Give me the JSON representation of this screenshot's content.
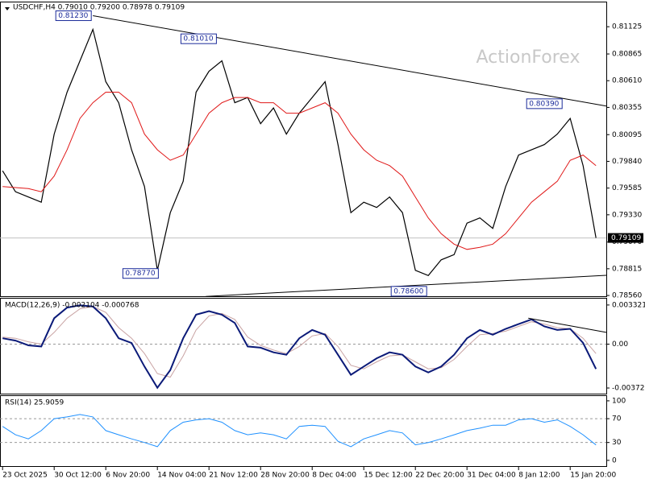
{
  "chart_data": [
    {
      "type": "line",
      "title": "USDCHF,H4  0.79010 0.79200 0.78978 0.79109",
      "watermark": "ActionForex",
      "xlim": [
        -0.2,
        46.8
      ],
      "ylim": [
        0.78545,
        0.81357
      ],
      "yticks": [
        0.81125,
        0.80865,
        {
          "value": 0.8061,
          "label": "0.80610"
        },
        0.80355,
        0.80095,
        {
          "value": 0.7984,
          "label": "0.79840"
        },
        0.79585,
        {
          "value": 0.7933,
          "label": "0.79330"
        },
        {
          "value": 0.7907,
          "label": "0.79070"
        },
        0.78815,
        {
          "value": 0.7856,
          "label": "0.78560"
        }
      ],
      "last_price": 0.79109,
      "series": [
        {
          "name": "USDCHF",
          "color": "#000000",
          "values": [
            0.7975,
            0.7955,
            0.795,
            0.7945,
            0.801,
            0.805,
            0.808,
            0.811,
            0.806,
            0.804,
            0.7995,
            0.796,
            0.788,
            0.7935,
            0.7965,
            0.805,
            0.807,
            0.808,
            0.804,
            0.8045,
            0.802,
            0.8035,
            0.801,
            0.803,
            0.8045,
            0.806,
            0.8,
            0.7935,
            0.7945,
            0.794,
            0.795,
            0.7935,
            0.788,
            0.7875,
            0.789,
            0.7895,
            0.7925,
            0.793,
            0.792,
            0.796,
            0.799,
            0.7995,
            0.8,
            0.801,
            0.8025,
            0.798,
            0.7911
          ]
        },
        {
          "name": "MA",
          "color": "#e01818",
          "values": [
            0.796,
            0.7959,
            0.7958,
            0.7955,
            0.797,
            0.7995,
            0.8025,
            0.804,
            0.805,
            0.805,
            0.804,
            0.801,
            0.7995,
            0.7985,
            0.799,
            0.801,
            0.803,
            0.804,
            0.8045,
            0.8045,
            0.804,
            0.804,
            0.803,
            0.803,
            0.8035,
            0.804,
            0.803,
            0.801,
            0.7995,
            0.7985,
            0.798,
            0.797,
            0.795,
            0.793,
            0.7915,
            0.7905,
            0.79,
            0.7902,
            0.7905,
            0.7915,
            0.793,
            0.7945,
            0.7955,
            0.7965,
            0.7985,
            0.799,
            0.798
          ]
        }
      ],
      "trendlines": [
        {
          "x": [
            7,
            46.8
          ],
          "y": [
            0.8123,
            0.80368
          ]
        },
        {
          "x": [
            15.75,
            46.8
          ],
          "y": [
            0.78551,
            0.78752
          ]
        }
      ],
      "annotations": [
        {
          "value": 0.8123,
          "label": "0.81230",
          "x": 7
        },
        {
          "value": 0.8101,
          "label": "0.81010",
          "x": 16.7
        },
        {
          "value": 0.7877,
          "label": "0.78770",
          "x": 12.2
        },
        {
          "value": 0.786,
          "label": "0.78600",
          "x": 33
        },
        {
          "value": 0.8039,
          "label": "0.80390",
          "x": 43.5
        }
      ]
    },
    {
      "type": "line",
      "title": "MACD(12,26,9) -0.002104 -0.000768",
      "xlim": [
        -0.2,
        46.8
      ],
      "ylim": [
        -0.00427,
        0.00386
      ],
      "yticks": [
        0.003321,
        {
          "value": 0,
          "label": "0.00"
        },
        -0.003723
      ],
      "levels": [
        0
      ],
      "series": [
        {
          "name": "Signal",
          "color": "#c9a3a3",
          "values": [
            0.0006,
            0.0005,
            0.0002,
            0,
            0.001,
            0.0022,
            0.003,
            0.0032,
            0.0027,
            0.0014,
            0.0005,
            -0.0008,
            -0.0025,
            -0.0028,
            -0.001,
            0.0012,
            0.0024,
            0.0026,
            0.0021,
            0.0006,
            -0.0001,
            -0.0005,
            -0.0008,
            -0.0002,
            0.0007,
            0.0009,
            -0.0002,
            -0.0018,
            -0.0021,
            -0.0015,
            -0.001,
            -0.0009,
            -0.0015,
            -0.0021,
            -0.002,
            -0.0013,
            -0.0002,
            0.0008,
            0.0009,
            0.0011,
            0.0015,
            0.0019,
            0.0017,
            0.0014,
            0.0013,
            0.0005,
            -0.0008
          ]
        },
        {
          "name": "MACD",
          "color": "#0b1a78",
          "values": [
            0.0005,
            0.0003,
            -0.0001,
            -0.0002,
            0.0022,
            0.0031,
            0.0033,
            0.0032,
            0.0022,
            0.0005,
            0.0001,
            -0.0019,
            -0.0037,
            -0.0022,
            0.0005,
            0.0025,
            0.0028,
            0.0025,
            0.0018,
            -0.0002,
            -0.0003,
            -0.0007,
            -0.0009,
            0.0005,
            0.0012,
            0.0008,
            -0.0009,
            -0.0026,
            -0.0019,
            -0.0012,
            -0.0007,
            -0.0009,
            -0.0019,
            -0.0024,
            -0.0019,
            -0.0009,
            0.0005,
            0.0012,
            0.0008,
            0.0013,
            0.0017,
            0.0021,
            0.0015,
            0.0012,
            0.0013,
            0.0001,
            -0.002104
          ]
        }
      ],
      "trendlines": [
        {
          "x": [
            40.75,
            46.8
          ],
          "y": [
            0.0022,
            0.001
          ]
        }
      ]
    },
    {
      "type": "line",
      "title": "RSI(14) 25.9059",
      "xlim": [
        -0.2,
        46.8
      ],
      "ylim": [
        -11,
        108
      ],
      "yticks": [
        100,
        70,
        30,
        0
      ],
      "levels": [
        70,
        30
      ],
      "xticks": [
        {
          "value": 0,
          "label": "23 Oct 2025"
        },
        {
          "value": 4,
          "label": "30 Oct 12:00"
        },
        {
          "value": 8,
          "label": "6 Nov 20:00"
        },
        {
          "value": 12,
          "label": "14 Nov 04:00"
        },
        {
          "value": 16,
          "label": "21 Nov 12:00"
        },
        {
          "value": 20,
          "label": "28 Nov 20:00"
        },
        {
          "value": 24,
          "label": "8 Dec 04:00"
        },
        {
          "value": 28,
          "label": "15 Dec 12:00"
        },
        {
          "value": 32,
          "label": "22 Dec 20:00"
        },
        {
          "value": 36,
          "label": "31 Dec 04:00"
        },
        {
          "value": 40,
          "label": "8 Jan 12:00"
        },
        {
          "value": 44,
          "label": "15 Jan 20:00"
        }
      ],
      "series": [
        {
          "name": "RSI",
          "color": "#1e90ff",
          "values": [
            57,
            43,
            36,
            50,
            70,
            73,
            77,
            73,
            50,
            43,
            36,
            30,
            23,
            50,
            64,
            68,
            70,
            64,
            50,
            43,
            46,
            43,
            36,
            57,
            59,
            57,
            32,
            23,
            36,
            43,
            50,
            46,
            26,
            30,
            36,
            43,
            50,
            54,
            59,
            59,
            68,
            70,
            64,
            68,
            57,
            43,
            25.9059
          ]
        }
      ]
    }
  ]
}
